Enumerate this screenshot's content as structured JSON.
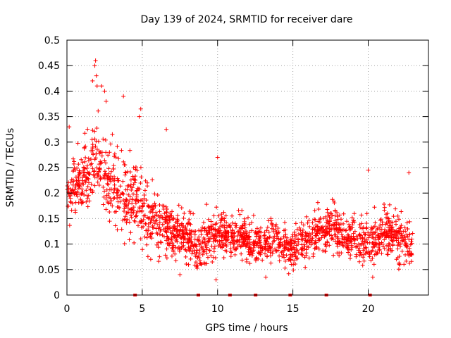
{
  "chart_data": {
    "type": "scatter",
    "title": "Day 139 of 2024, SRMTID for receiver dare",
    "xlabel": "GPS time / hours",
    "ylabel": "SRMTID / TECUs",
    "xlim": [
      0,
      24
    ],
    "ylim": [
      0,
      0.5
    ],
    "x_ticks": [
      0,
      5,
      10,
      15,
      20
    ],
    "y_ticks": [
      0,
      0.05,
      0.1,
      0.15,
      0.2,
      0.25,
      0.3,
      0.35,
      0.4,
      0.45,
      0.5
    ],
    "x_tick_labels": [
      "0",
      "5",
      "10",
      "15",
      "20"
    ],
    "y_tick_labels": [
      "0",
      "0.05",
      "0.1",
      "0.15",
      "0.2",
      "0.25",
      "0.3",
      "0.35",
      "0.4",
      "0.45",
      "0.5"
    ],
    "grid": true,
    "marker": "+",
    "color": "#ff0000",
    "description_of_trend": [
      {
        "x": 0.0,
        "y": 0.19
      },
      {
        "x": 0.5,
        "y": 0.21
      },
      {
        "x": 1.0,
        "y": 0.22
      },
      {
        "x": 1.5,
        "y": 0.25
      },
      {
        "x": 2.0,
        "y": 0.27
      },
      {
        "x": 2.5,
        "y": 0.24
      },
      {
        "x": 3.0,
        "y": 0.21
      },
      {
        "x": 3.5,
        "y": 0.2
      },
      {
        "x": 4.0,
        "y": 0.18
      },
      {
        "x": 4.5,
        "y": 0.2
      },
      {
        "x": 5.0,
        "y": 0.17
      },
      {
        "x": 5.5,
        "y": 0.15
      },
      {
        "x": 6.0,
        "y": 0.14
      },
      {
        "x": 6.5,
        "y": 0.13
      },
      {
        "x": 7.0,
        "y": 0.12
      },
      {
        "x": 7.5,
        "y": 0.12
      },
      {
        "x": 8.0,
        "y": 0.11
      },
      {
        "x": 8.5,
        "y": 0.09
      },
      {
        "x": 9.0,
        "y": 0.1
      },
      {
        "x": 9.5,
        "y": 0.11
      },
      {
        "x": 10.0,
        "y": 0.13
      },
      {
        "x": 10.5,
        "y": 0.12
      },
      {
        "x": 11.0,
        "y": 0.11
      },
      {
        "x": 11.5,
        "y": 0.12
      },
      {
        "x": 12.0,
        "y": 0.11
      },
      {
        "x": 12.5,
        "y": 0.1
      },
      {
        "x": 13.0,
        "y": 0.1
      },
      {
        "x": 13.5,
        "y": 0.11
      },
      {
        "x": 14.0,
        "y": 0.1
      },
      {
        "x": 14.5,
        "y": 0.1
      },
      {
        "x": 15.0,
        "y": 0.09
      },
      {
        "x": 15.5,
        "y": 0.1
      },
      {
        "x": 16.0,
        "y": 0.11
      },
      {
        "x": 16.5,
        "y": 0.12
      },
      {
        "x": 17.0,
        "y": 0.13
      },
      {
        "x": 17.5,
        "y": 0.14
      },
      {
        "x": 18.0,
        "y": 0.12
      },
      {
        "x": 18.5,
        "y": 0.11
      },
      {
        "x": 19.0,
        "y": 0.11
      },
      {
        "x": 19.5,
        "y": 0.1
      },
      {
        "x": 20.0,
        "y": 0.1
      },
      {
        "x": 20.5,
        "y": 0.11
      },
      {
        "x": 21.0,
        "y": 0.12
      },
      {
        "x": 21.5,
        "y": 0.12
      },
      {
        "x": 22.0,
        "y": 0.11
      },
      {
        "x": 22.5,
        "y": 0.1
      },
      {
        "x": 23.0,
        "y": 0.09
      }
    ],
    "spread": [
      {
        "x": 0.0,
        "s": 0.04
      },
      {
        "x": 2.0,
        "s": 0.07
      },
      {
        "x": 4.0,
        "s": 0.07
      },
      {
        "x": 6.0,
        "s": 0.05
      },
      {
        "x": 9.0,
        "s": 0.04
      },
      {
        "x": 12.0,
        "s": 0.035
      },
      {
        "x": 16.0,
        "s": 0.035
      },
      {
        "x": 20.0,
        "s": 0.04
      },
      {
        "x": 23.0,
        "s": 0.04
      }
    ],
    "notable_points": [
      {
        "x": 1.9,
        "y": 0.46
      },
      {
        "x": 1.85,
        "y": 0.45
      },
      {
        "x": 1.95,
        "y": 0.43
      },
      {
        "x": 2.0,
        "y": 0.41
      },
      {
        "x": 2.3,
        "y": 0.41
      },
      {
        "x": 2.5,
        "y": 0.4
      },
      {
        "x": 1.7,
        "y": 0.42
      },
      {
        "x": 3.75,
        "y": 0.39
      },
      {
        "x": 2.6,
        "y": 0.38
      },
      {
        "x": 4.9,
        "y": 0.365
      },
      {
        "x": 4.8,
        "y": 0.35
      },
      {
        "x": 6.6,
        "y": 0.325
      },
      {
        "x": 0.15,
        "y": 0.33
      },
      {
        "x": 10.0,
        "y": 0.27
      },
      {
        "x": 20.0,
        "y": 0.245
      },
      {
        "x": 22.7,
        "y": 0.24
      },
      {
        "x": 9.9,
        "y": 0.03
      },
      {
        "x": 13.2,
        "y": 0.035
      },
      {
        "x": 20.3,
        "y": 0.035
      },
      {
        "x": 7.5,
        "y": 0.04
      }
    ],
    "zero_points": [
      4.5,
      8.7,
      10.8,
      12.5,
      14.8,
      17.2,
      20.1
    ],
    "point_count": 1900
  }
}
